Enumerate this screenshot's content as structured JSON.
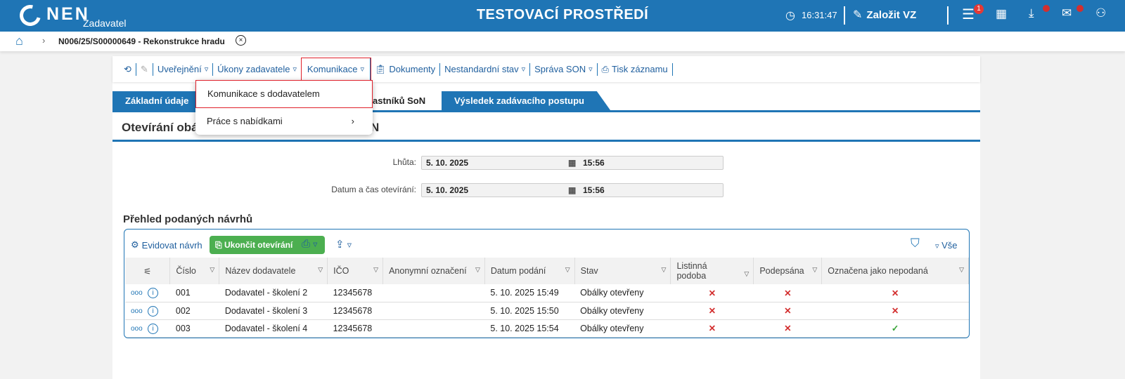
{
  "header": {
    "logo": "NEN",
    "logo_sub": "Zadavatel",
    "environment": "TESTOVACÍ PROSTŘEDÍ",
    "time": "16:31:47",
    "create_label": "Založit VZ",
    "menu_badge": "1",
    "icons": [
      "clock-icon",
      "edit-icon",
      "menu-icon",
      "calendar-icon",
      "download-icon",
      "mail-icon",
      "user-icon"
    ]
  },
  "breadcrumb": {
    "item": "N006/25/S00000649 - Rekonstrukce hradu"
  },
  "toolbar": {
    "items": [
      "Uveřejnění",
      "Úkony zadavatele",
      "Komunikace",
      "Dokumenty",
      "Nestandardní stav",
      "Správa SON",
      "Tisk záznamu"
    ]
  },
  "menu": {
    "items": [
      "Komunikace s dodavatelem",
      "Práce s nabídkami"
    ]
  },
  "tabs": [
    "Základní údaje",
    "astníků SoN",
    "Výsledek zadávacího postupu"
  ],
  "section": {
    "title_left": "Otevírání obál",
    "title_right": "N"
  },
  "fields": {
    "deadline_label": "Lhůta:",
    "deadline_date": "5. 10. 2025",
    "deadline_time": "15:56",
    "open_label": "Datum a čas otevírání:",
    "open_date": "5. 10. 2025",
    "open_time": "15:56"
  },
  "grid": {
    "title": "Přehled podaných návrhů",
    "register_label": "Evidovat návrh",
    "finish_label": "Ukončit otevírání",
    "filter_all": "Vše",
    "columns": [
      "Číslo",
      "Název dodavatele",
      "IČO",
      "Anonymní označení",
      "Datum podání",
      "Stav",
      "Listinná podoba",
      "Podepsána",
      "Označena jako nepodaná"
    ],
    "rows": [
      {
        "num": "001",
        "name": "Dodavatel - školení 2",
        "ico": "12345678",
        "anon": "",
        "date": "5. 10. 2025 15:49",
        "state": "Obálky otevřeny",
        "paper": "✕",
        "signed": "✕",
        "notsub": "✕"
      },
      {
        "num": "002",
        "name": "Dodavatel - školení 3",
        "ico": "12345678",
        "anon": "",
        "date": "5. 10. 2025 15:50",
        "state": "Obálky otevřeny",
        "paper": "✕",
        "signed": "✕",
        "notsub": "✕"
      },
      {
        "num": "003",
        "name": "Dodavatel - školení 4",
        "ico": "12345678",
        "anon": "",
        "date": "5. 10. 2025 15:54",
        "state": "Obálky otevřeny",
        "paper": "✕",
        "signed": "✕",
        "notsub": "✓"
      }
    ]
  },
  "colors": {
    "brand": "#1f75b5",
    "highlight": "#e0212b",
    "success": "#4caf50",
    "error": "#d32f2f"
  }
}
